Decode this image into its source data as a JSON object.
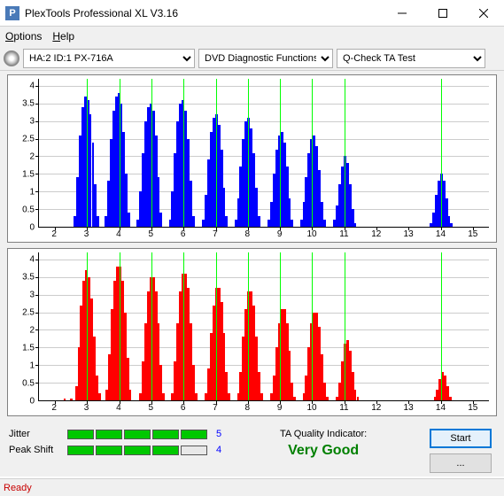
{
  "window": {
    "title": "PlexTools Professional XL V3.16",
    "icon_letter": "P"
  },
  "menu": {
    "options": "Options",
    "help": "Help"
  },
  "toolbar": {
    "drive": "HA:2 ID:1   PX-716A",
    "category": "DVD Diagnostic Functions",
    "test": "Q-Check TA Test"
  },
  "chart_top": {
    "type": "bar",
    "color": "#0000ff",
    "green_color": "#00ff00",
    "grid_color": "#cccccc",
    "yticks": [
      0,
      0.5,
      1,
      1.5,
      2,
      2.5,
      3,
      3.5,
      4
    ],
    "ylabels": [
      "0",
      "0.5",
      "1",
      "1.5",
      "2",
      "2.5",
      "3",
      "3.5",
      "4"
    ],
    "ymax": 4.2,
    "xticks": [
      2,
      3,
      4,
      5,
      6,
      7,
      8,
      9,
      10,
      11,
      12,
      13,
      14,
      15
    ],
    "xlabels": [
      "2",
      "3",
      "4",
      "5",
      "6",
      "7",
      "8",
      "9",
      "10",
      "11",
      "12",
      "13",
      "14",
      "15"
    ],
    "xmin": 1.5,
    "xmax": 15.5,
    "green_lines": [
      3,
      4,
      5,
      6,
      7,
      8,
      9,
      10,
      11,
      14
    ],
    "bars": [
      [
        2.62,
        0.3
      ],
      [
        2.7,
        1.4
      ],
      [
        2.78,
        2.6
      ],
      [
        2.86,
        3.4
      ],
      [
        2.94,
        3.7
      ],
      [
        3.02,
        3.6
      ],
      [
        3.1,
        3.2
      ],
      [
        3.18,
        2.4
      ],
      [
        3.26,
        1.2
      ],
      [
        3.34,
        0.3
      ],
      [
        3.58,
        0.3
      ],
      [
        3.66,
        1.3
      ],
      [
        3.74,
        2.5
      ],
      [
        3.82,
        3.3
      ],
      [
        3.9,
        3.7
      ],
      [
        3.98,
        3.8
      ],
      [
        4.06,
        3.5
      ],
      [
        4.14,
        2.7
      ],
      [
        4.22,
        1.5
      ],
      [
        4.3,
        0.4
      ],
      [
        4.58,
        0.2
      ],
      [
        4.66,
        1.0
      ],
      [
        4.74,
        2.1
      ],
      [
        4.82,
        3.0
      ],
      [
        4.9,
        3.4
      ],
      [
        4.98,
        3.5
      ],
      [
        5.06,
        3.3
      ],
      [
        5.14,
        2.6
      ],
      [
        5.22,
        1.4
      ],
      [
        5.3,
        0.4
      ],
      [
        5.58,
        0.2
      ],
      [
        5.66,
        1.0
      ],
      [
        5.74,
        2.1
      ],
      [
        5.82,
        3.0
      ],
      [
        5.9,
        3.5
      ],
      [
        5.98,
        3.6
      ],
      [
        6.06,
        3.3
      ],
      [
        6.14,
        2.5
      ],
      [
        6.22,
        1.3
      ],
      [
        6.3,
        0.3
      ],
      [
        6.62,
        0.2
      ],
      [
        6.7,
        0.9
      ],
      [
        6.78,
        1.9
      ],
      [
        6.86,
        2.7
      ],
      [
        6.94,
        3.1
      ],
      [
        7.02,
        3.2
      ],
      [
        7.1,
        2.9
      ],
      [
        7.18,
        2.2
      ],
      [
        7.26,
        1.1
      ],
      [
        7.34,
        0.3
      ],
      [
        7.62,
        0.2
      ],
      [
        7.7,
        0.8
      ],
      [
        7.78,
        1.7
      ],
      [
        7.86,
        2.5
      ],
      [
        7.94,
        3.0
      ],
      [
        8.02,
        3.1
      ],
      [
        8.1,
        2.8
      ],
      [
        8.18,
        2.1
      ],
      [
        8.26,
        1.1
      ],
      [
        8.34,
        0.3
      ],
      [
        8.66,
        0.2
      ],
      [
        8.74,
        0.7
      ],
      [
        8.82,
        1.5
      ],
      [
        8.9,
        2.2
      ],
      [
        8.98,
        2.6
      ],
      [
        9.06,
        2.7
      ],
      [
        9.14,
        2.4
      ],
      [
        9.22,
        1.7
      ],
      [
        9.3,
        0.8
      ],
      [
        9.38,
        0.2
      ],
      [
        9.66,
        0.2
      ],
      [
        9.74,
        0.7
      ],
      [
        9.82,
        1.4
      ],
      [
        9.9,
        2.1
      ],
      [
        9.98,
        2.5
      ],
      [
        10.06,
        2.6
      ],
      [
        10.14,
        2.3
      ],
      [
        10.22,
        1.6
      ],
      [
        10.3,
        0.7
      ],
      [
        10.38,
        0.2
      ],
      [
        10.7,
        0.2
      ],
      [
        10.78,
        0.6
      ],
      [
        10.86,
        1.2
      ],
      [
        10.94,
        1.7
      ],
      [
        11.02,
        2.0
      ],
      [
        11.1,
        1.8
      ],
      [
        11.18,
        1.2
      ],
      [
        11.26,
        0.5
      ],
      [
        11.34,
        0.1
      ],
      [
        13.7,
        0.1
      ],
      [
        13.78,
        0.4
      ],
      [
        13.86,
        0.9
      ],
      [
        13.94,
        1.3
      ],
      [
        14.02,
        1.5
      ],
      [
        14.1,
        1.3
      ],
      [
        14.18,
        0.8
      ],
      [
        14.26,
        0.3
      ],
      [
        14.34,
        0.1
      ]
    ]
  },
  "chart_bottom": {
    "type": "bar",
    "color": "#ff0000",
    "green_color": "#00ff00",
    "grid_color": "#cccccc",
    "yticks": [
      0,
      0.5,
      1,
      1.5,
      2,
      2.5,
      3,
      3.5,
      4
    ],
    "ylabels": [
      "0",
      "0.5",
      "1",
      "1.5",
      "2",
      "2.5",
      "3",
      "3.5",
      "4"
    ],
    "ymax": 4.2,
    "xticks": [
      2,
      3,
      4,
      5,
      6,
      7,
      8,
      9,
      10,
      11,
      12,
      13,
      14,
      15
    ],
    "xlabels": [
      "2",
      "3",
      "4",
      "5",
      "6",
      "7",
      "8",
      "9",
      "10",
      "11",
      "12",
      "13",
      "14",
      "15"
    ],
    "xmin": 1.5,
    "xmax": 15.5,
    "green_lines": [
      3,
      4,
      5,
      6,
      7,
      8,
      9,
      10,
      11,
      14
    ],
    "bars": [
      [
        2.3,
        0.05
      ],
      [
        2.5,
        0.05
      ],
      [
        2.66,
        0.4
      ],
      [
        2.74,
        1.5
      ],
      [
        2.82,
        2.7
      ],
      [
        2.9,
        3.4
      ],
      [
        2.98,
        3.7
      ],
      [
        3.06,
        3.5
      ],
      [
        3.14,
        2.9
      ],
      [
        3.22,
        1.8
      ],
      [
        3.3,
        0.7
      ],
      [
        3.38,
        0.2
      ],
      [
        3.62,
        0.3
      ],
      [
        3.7,
        1.3
      ],
      [
        3.78,
        2.6
      ],
      [
        3.86,
        3.4
      ],
      [
        3.94,
        3.8
      ],
      [
        4.02,
        3.8
      ],
      [
        4.1,
        3.4
      ],
      [
        4.18,
        2.5
      ],
      [
        4.26,
        1.2
      ],
      [
        4.34,
        0.3
      ],
      [
        4.66,
        0.2
      ],
      [
        4.74,
        1.1
      ],
      [
        4.82,
        2.2
      ],
      [
        4.9,
        3.1
      ],
      [
        4.98,
        3.5
      ],
      [
        5.06,
        3.5
      ],
      [
        5.14,
        3.1
      ],
      [
        5.22,
        2.2
      ],
      [
        5.3,
        1.0
      ],
      [
        5.38,
        0.2
      ],
      [
        5.66,
        0.2
      ],
      [
        5.74,
        1.1
      ],
      [
        5.82,
        2.2
      ],
      [
        5.9,
        3.1
      ],
      [
        5.98,
        3.6
      ],
      [
        6.06,
        3.6
      ],
      [
        6.14,
        3.2
      ],
      [
        6.22,
        2.2
      ],
      [
        6.3,
        1.0
      ],
      [
        6.38,
        0.2
      ],
      [
        6.7,
        0.2
      ],
      [
        6.78,
        0.9
      ],
      [
        6.86,
        1.9
      ],
      [
        6.94,
        2.7
      ],
      [
        7.02,
        3.2
      ],
      [
        7.1,
        3.2
      ],
      [
        7.18,
        2.8
      ],
      [
        7.26,
        1.9
      ],
      [
        7.34,
        0.8
      ],
      [
        7.42,
        0.2
      ],
      [
        7.7,
        0.2
      ],
      [
        7.78,
        0.8
      ],
      [
        7.86,
        1.8
      ],
      [
        7.94,
        2.6
      ],
      [
        8.02,
        3.1
      ],
      [
        8.1,
        3.1
      ],
      [
        8.18,
        2.7
      ],
      [
        8.26,
        1.8
      ],
      [
        8.34,
        0.8
      ],
      [
        8.42,
        0.2
      ],
      [
        8.74,
        0.2
      ],
      [
        8.82,
        0.7
      ],
      [
        8.9,
        1.5
      ],
      [
        8.98,
        2.2
      ],
      [
        9.06,
        2.6
      ],
      [
        9.14,
        2.6
      ],
      [
        9.22,
        2.2
      ],
      [
        9.3,
        1.4
      ],
      [
        9.38,
        0.5
      ],
      [
        9.46,
        0.1
      ],
      [
        9.74,
        0.2
      ],
      [
        9.82,
        0.7
      ],
      [
        9.9,
        1.5
      ],
      [
        9.98,
        2.2
      ],
      [
        10.06,
        2.5
      ],
      [
        10.14,
        2.5
      ],
      [
        10.22,
        2.1
      ],
      [
        10.3,
        1.3
      ],
      [
        10.38,
        0.5
      ],
      [
        10.46,
        0.1
      ],
      [
        10.78,
        0.1
      ],
      [
        10.86,
        0.5
      ],
      [
        10.94,
        1.1
      ],
      [
        11.02,
        1.6
      ],
      [
        11.1,
        1.7
      ],
      [
        11.18,
        1.4
      ],
      [
        11.26,
        0.8
      ],
      [
        11.34,
        0.3
      ],
      [
        11.42,
        0.1
      ],
      [
        13.82,
        0.1
      ],
      [
        13.9,
        0.3
      ],
      [
        13.98,
        0.6
      ],
      [
        14.06,
        0.8
      ],
      [
        14.14,
        0.7
      ],
      [
        14.22,
        0.4
      ],
      [
        14.3,
        0.1
      ]
    ]
  },
  "metrics": {
    "jitter": {
      "label": "Jitter",
      "value": "5",
      "lit": 5,
      "total": 5
    },
    "peakshift": {
      "label": "Peak Shift",
      "value": "4",
      "lit": 4,
      "total": 5
    }
  },
  "quality": {
    "label": "TA Quality Indicator:",
    "value": "Very Good"
  },
  "actions": {
    "start": "Start",
    "more": "..."
  },
  "status": {
    "text": "Ready"
  }
}
